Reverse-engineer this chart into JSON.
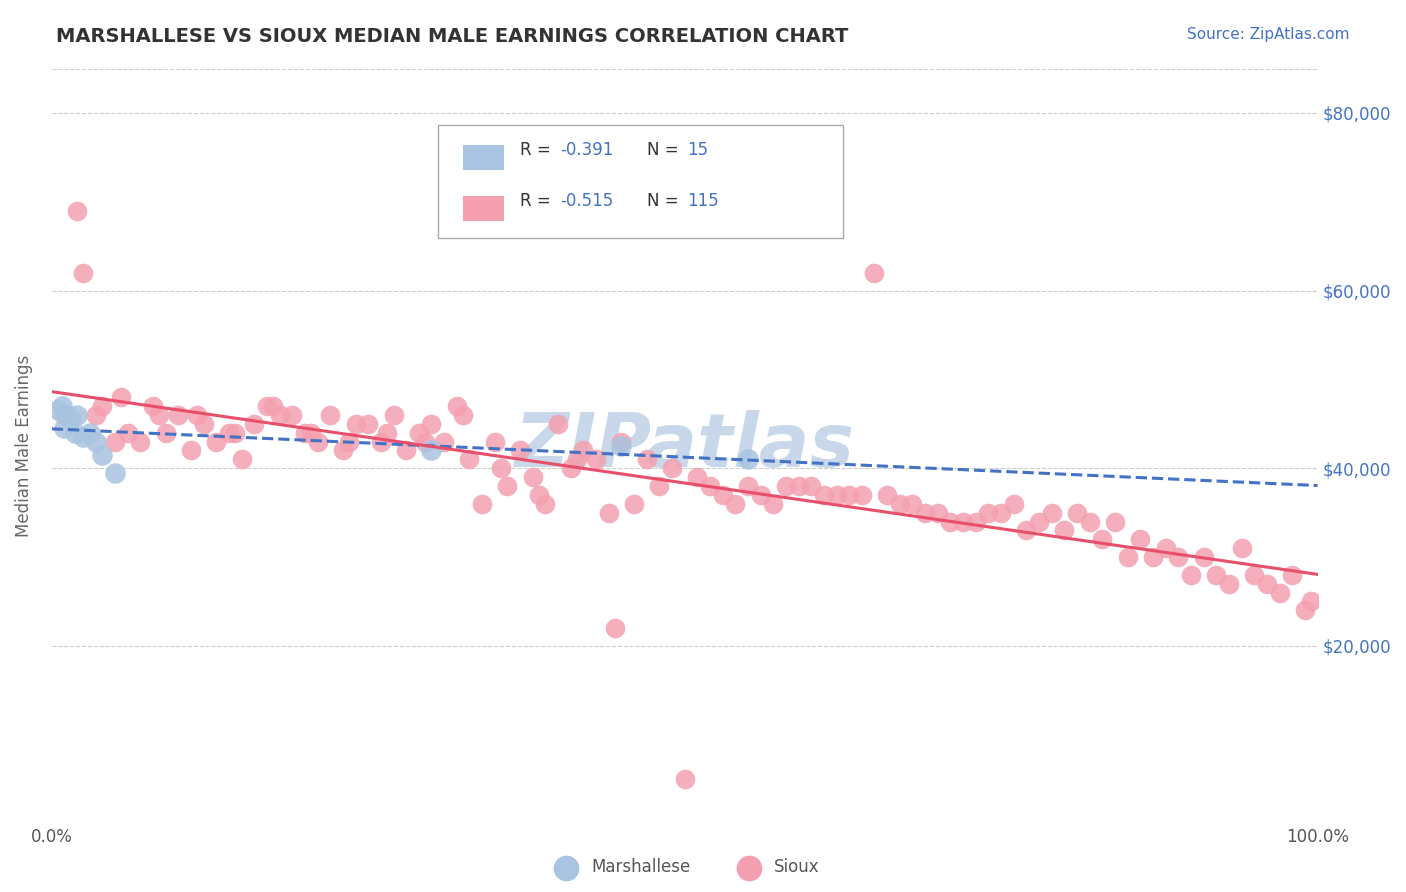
{
  "title": "MARSHALLESE VS SIOUX MEDIAN MALE EARNINGS CORRELATION CHART",
  "source_text": "Source: ZipAtlas.com",
  "ylabel": "Median Male Earnings",
  "xlim": [
    0,
    100
  ],
  "ylim": [
    0,
    85000
  ],
  "yticks": [
    0,
    20000,
    40000,
    60000,
    80000
  ],
  "ytick_labels": [
    "",
    "$20,000",
    "$40,000",
    "$60,000",
    "$80,000"
  ],
  "xtick_labels": [
    "0.0%",
    "100.0%"
  ],
  "legend_r_marshallese": "-0.391",
  "legend_n_marshallese": "15",
  "legend_r_sioux": "-0.515",
  "legend_n_sioux": "115",
  "color_marshallese": "#a8c4e0",
  "color_sioux": "#f4a0b0",
  "color_marshallese_line": "#4472c4",
  "color_sioux_line": "#e84f6b",
  "color_title": "#333333",
  "color_source": "#4472c4",
  "color_axis_label": "#666666",
  "background_color": "#ffffff",
  "grid_color": "#cccccc",
  "watermark_color": "#c8d8ea",
  "marshallese_x": [
    0.5,
    0.8,
    1.0,
    1.2,
    1.5,
    1.8,
    2.0,
    2.5,
    3.0,
    3.5,
    4.0,
    5.0,
    30.0,
    45.0,
    55.0
  ],
  "marshallese_y": [
    46500,
    47000,
    44500,
    46000,
    45500,
    44000,
    46000,
    43500,
    44000,
    43000,
    41500,
    39500,
    42000,
    42500,
    41000
  ],
  "sioux_x": [
    1.0,
    2.0,
    3.5,
    4.0,
    5.0,
    6.0,
    7.0,
    8.0,
    9.0,
    10.0,
    11.0,
    12.0,
    13.0,
    14.0,
    15.0,
    16.0,
    17.0,
    18.0,
    19.0,
    20.0,
    21.0,
    22.0,
    23.0,
    24.0,
    25.0,
    26.0,
    27.0,
    28.0,
    29.0,
    30.0,
    31.0,
    32.0,
    33.0,
    34.0,
    35.0,
    36.0,
    37.0,
    38.0,
    39.0,
    40.0,
    41.0,
    42.0,
    43.0,
    44.0,
    45.0,
    46.0,
    47.0,
    48.0,
    49.0,
    50.0,
    51.0,
    52.0,
    53.0,
    54.0,
    55.0,
    56.0,
    57.0,
    58.0,
    59.0,
    60.0,
    61.0,
    62.0,
    63.0,
    64.0,
    65.0,
    66.0,
    67.0,
    68.0,
    69.0,
    70.0,
    71.0,
    72.0,
    73.0,
    74.0,
    75.0,
    76.0,
    77.0,
    78.0,
    79.0,
    80.0,
    81.0,
    82.0,
    83.0,
    84.0,
    85.0,
    86.0,
    87.0,
    88.0,
    89.0,
    90.0,
    91.0,
    92.0,
    93.0,
    94.0,
    95.0,
    96.0,
    97.0,
    98.0,
    99.0,
    99.5,
    2.5,
    5.5,
    8.5,
    11.5,
    14.5,
    17.5,
    20.5,
    23.5,
    26.5,
    29.5,
    32.5,
    35.5,
    38.5,
    41.5,
    44.5
  ],
  "sioux_y": [
    46000,
    69000,
    46000,
    47000,
    43000,
    44000,
    43000,
    47000,
    44000,
    46000,
    42000,
    45000,
    43000,
    44000,
    41000,
    45000,
    47000,
    46000,
    46000,
    44000,
    43000,
    46000,
    42000,
    45000,
    45000,
    43000,
    46000,
    42000,
    44000,
    45000,
    43000,
    47000,
    41000,
    36000,
    43000,
    38000,
    42000,
    39000,
    36000,
    45000,
    40000,
    42000,
    41000,
    35000,
    43000,
    36000,
    41000,
    38000,
    40000,
    5000,
    39000,
    38000,
    37000,
    36000,
    38000,
    37000,
    36000,
    38000,
    38000,
    38000,
    37000,
    37000,
    37000,
    37000,
    62000,
    37000,
    36000,
    36000,
    35000,
    35000,
    34000,
    34000,
    34000,
    35000,
    35000,
    36000,
    33000,
    34000,
    35000,
    33000,
    35000,
    34000,
    32000,
    34000,
    30000,
    32000,
    30000,
    31000,
    30000,
    28000,
    30000,
    28000,
    27000,
    31000,
    28000,
    27000,
    26000,
    28000,
    24000,
    25000,
    62000,
    48000,
    46000,
    46000,
    44000,
    47000,
    44000,
    43000,
    44000,
    43000,
    46000,
    40000,
    37000,
    41000,
    22000
  ]
}
